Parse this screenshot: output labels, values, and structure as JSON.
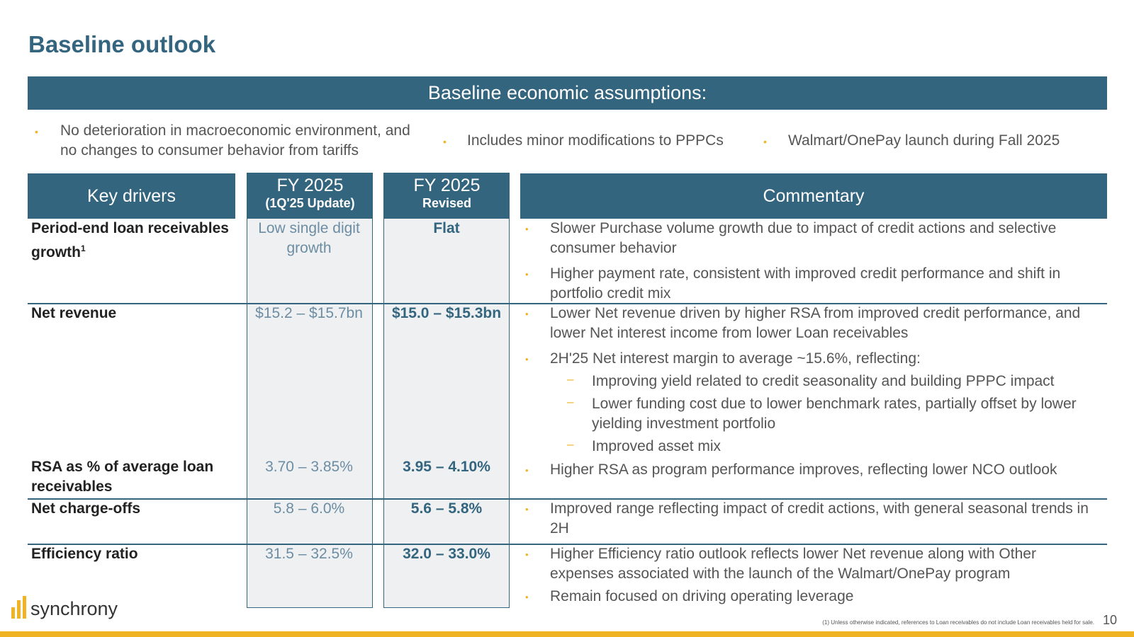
{
  "page": {
    "title": "Baseline outlook",
    "page_number": "10"
  },
  "banner": {
    "title": "Baseline economic assumptions:"
  },
  "assumptions": [
    "No deterioration in macroeconomic environment, and no changes to consumer behavior from tariffs",
    "Includes minor modifications to PPPCs",
    "Walmart/OnePay launch during Fall 2025"
  ],
  "table": {
    "headers": {
      "drivers": "Key drivers",
      "col1_main": "FY 2025",
      "col1_sub": "(1Q'25 Update)",
      "col2_main": "FY 2025",
      "col2_sub": "Revised",
      "commentary": "Commentary"
    },
    "rows": [
      {
        "driver": "Period-end loan receivables growth",
        "footnote_mark": "1",
        "prior": "Low single digit growth",
        "revised": "Flat",
        "commentary": [
          "Slower Purchase volume growth due to impact of credit actions and selective consumer behavior",
          "Higher payment rate, consistent with improved credit performance and shift in portfolio credit mix"
        ]
      },
      {
        "driver": "Net revenue",
        "prior": "$15.2 – $15.7bn",
        "revised": "$15.0 – $15.3bn",
        "commentary": [
          "Lower Net revenue driven by higher RSA from improved credit performance, and lower Net interest income from lower Loan receivables",
          "2H'25 Net interest margin to average ~15.6%, reflecting:"
        ],
        "sub_commentary": [
          "Improving yield related to credit seasonality and building PPPC impact",
          "Lower funding cost due to lower benchmark rates, partially offset by lower yielding investment portfolio",
          "Improved asset mix"
        ]
      },
      {
        "driver": "RSA as % of average loan receivables",
        "prior": "3.70 – 3.85%",
        "revised": "3.95 – 4.10%",
        "commentary": [
          "Higher RSA as program performance improves, reflecting lower NCO outlook"
        ]
      },
      {
        "driver": "Net charge-offs",
        "prior": "5.8 – 6.0%",
        "revised": "5.6 – 5.8%",
        "commentary": [
          "Improved range reflecting impact of credit actions, with general seasonal trends in 2H"
        ]
      },
      {
        "driver": "Efficiency ratio",
        "prior": "31.5 – 32.5%",
        "revised": "32.0 – 33.0%",
        "commentary": [
          "Higher Efficiency ratio outlook reflects lower Net revenue along with Other expenses associated with the launch of the Walmart/OnePay program",
          "Remain focused on driving operating leverage"
        ]
      }
    ]
  },
  "logo": {
    "text": "synchrony"
  },
  "footnote": "(1) Unless otherwise indicated, references to Loan receivables do not include Loan receivables held for sale.",
  "colors": {
    "primary": "#34657f",
    "accent": "#f0b323",
    "box_fill": "#eef0f2"
  }
}
